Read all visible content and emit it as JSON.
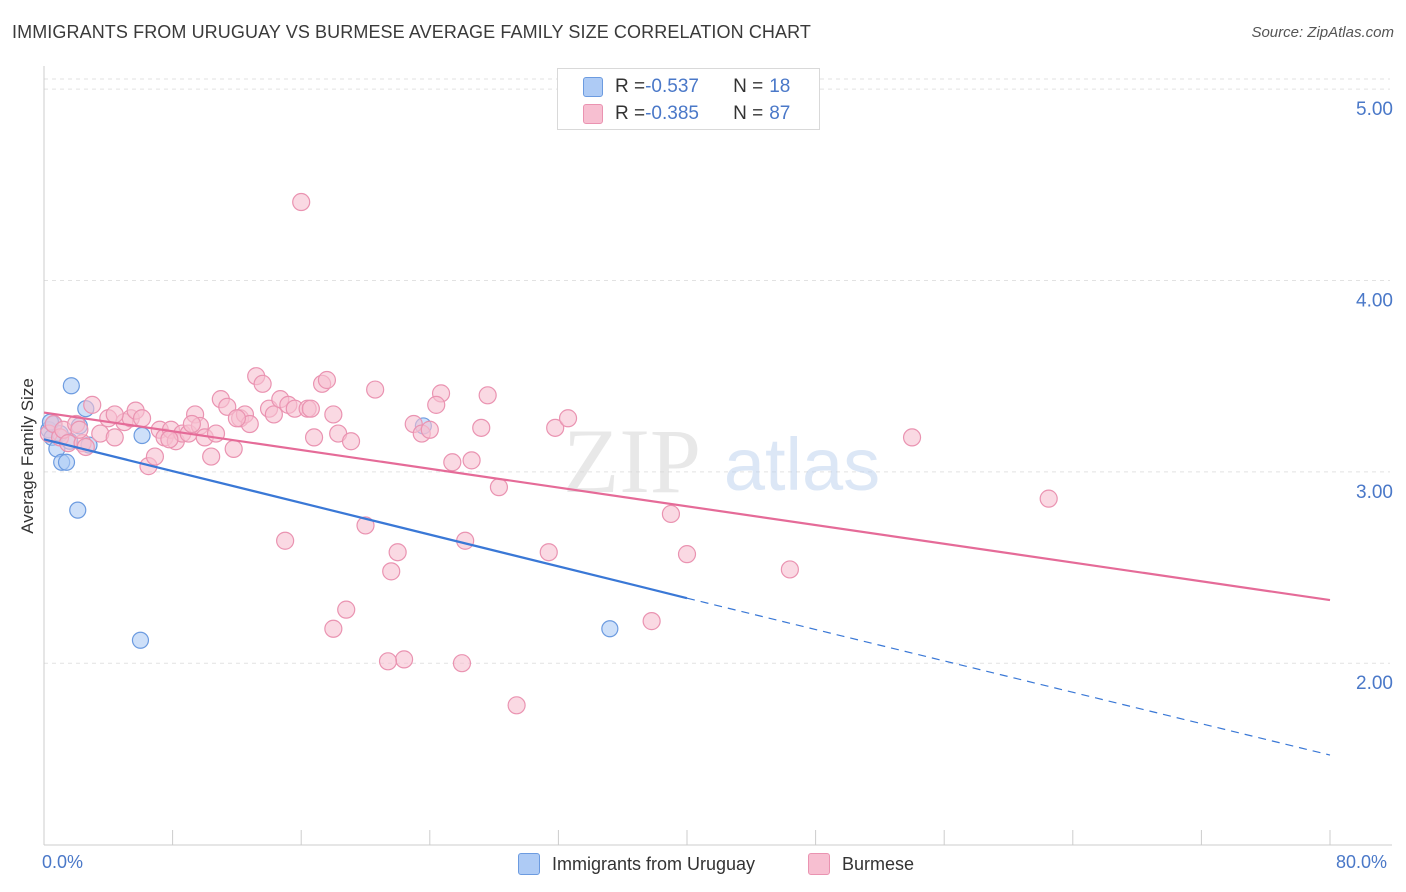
{
  "title": "IMMIGRANTS FROM URUGUAY VS BURMESE AVERAGE FAMILY SIZE CORRELATION CHART",
  "source": "Source: ZipAtlas.com",
  "watermark": {
    "zip": "ZIP",
    "atlas": "atlas"
  },
  "colors": {
    "blue_fill": "#aecbf5",
    "blue_stroke": "#6c9be0",
    "blue_line": "#3a78d6",
    "pink_fill": "#f7bfd1",
    "pink_stroke": "#ea93b1",
    "pink_line": "#e56b98",
    "axis_text": "#4a78c8",
    "grid": "#e2e2e2"
  },
  "legend": {
    "blue": {
      "r_label": "R = ",
      "r_value": "-0.537",
      "n_label": "N = ",
      "n_value": "18"
    },
    "pink": {
      "r_label": "R = ",
      "r_value": "-0.385",
      "n_label": "N = ",
      "n_value": "87"
    }
  },
  "chart_data": {
    "type": "scatter",
    "ylabel": "Average Family Size",
    "xlim": [
      0,
      80
    ],
    "ylim": [
      1.05,
      5.1
    ],
    "x_tick_labels": {
      "left": "0.0%",
      "right": "80.0%"
    },
    "y_ticks": [
      {
        "value": 2.0,
        "label": "2.00"
      },
      {
        "value": 3.0,
        "label": "3.00"
      },
      {
        "value": 4.0,
        "label": "4.00"
      },
      {
        "value": 5.0,
        "label": "5.00"
      }
    ],
    "grid": true,
    "series": [
      {
        "name": "Immigrants from Uruguay",
        "color_key": "blue",
        "trend": {
          "x0": 0,
          "y0": 3.17,
          "x1": 40,
          "y1": 2.34,
          "dash_to_x": 80,
          "dash_to_y": 1.52
        },
        "points": [
          [
            0.3,
            3.22
          ],
          [
            0.5,
            3.18
          ],
          [
            0.6,
            3.25
          ],
          [
            0.8,
            3.12
          ],
          [
            1.0,
            3.2
          ],
          [
            1.1,
            3.05
          ],
          [
            1.4,
            3.05
          ],
          [
            1.6,
            3.16
          ],
          [
            1.7,
            3.45
          ],
          [
            2.2,
            3.24
          ],
          [
            2.1,
            2.8
          ],
          [
            2.6,
            3.33
          ],
          [
            2.8,
            3.14
          ],
          [
            6.1,
            3.19
          ],
          [
            6.0,
            2.12
          ],
          [
            23.6,
            3.24
          ],
          [
            35.2,
            2.18
          ],
          [
            0.4,
            3.26
          ]
        ]
      },
      {
        "name": "Burmese",
        "color_key": "pink",
        "trend": {
          "x0": 0,
          "y0": 3.31,
          "x1": 80,
          "y1": 2.33
        },
        "points": [
          [
            0.3,
            3.2
          ],
          [
            0.6,
            3.25
          ],
          [
            1.0,
            3.18
          ],
          [
            1.2,
            3.22
          ],
          [
            1.5,
            3.15
          ],
          [
            2.0,
            3.25
          ],
          [
            2.4,
            3.15
          ],
          [
            2.6,
            3.13
          ],
          [
            3.0,
            3.35
          ],
          [
            3.5,
            3.2
          ],
          [
            4.0,
            3.28
          ],
          [
            4.4,
            3.18
          ],
          [
            5.0,
            3.26
          ],
          [
            5.4,
            3.28
          ],
          [
            5.7,
            3.32
          ],
          [
            6.1,
            3.28
          ],
          [
            6.5,
            3.03
          ],
          [
            6.9,
            3.08
          ],
          [
            7.2,
            3.22
          ],
          [
            7.5,
            3.18
          ],
          [
            7.9,
            3.22
          ],
          [
            8.2,
            3.16
          ],
          [
            8.6,
            3.2
          ],
          [
            9.0,
            3.2
          ],
          [
            9.4,
            3.3
          ],
          [
            9.7,
            3.24
          ],
          [
            10.0,
            3.18
          ],
          [
            10.4,
            3.08
          ],
          [
            10.7,
            3.2
          ],
          [
            11.0,
            3.38
          ],
          [
            11.4,
            3.34
          ],
          [
            11.8,
            3.12
          ],
          [
            12.2,
            3.28
          ],
          [
            12.5,
            3.3
          ],
          [
            12.8,
            3.25
          ],
          [
            13.2,
            3.5
          ],
          [
            13.6,
            3.46
          ],
          [
            14.0,
            3.33
          ],
          [
            14.3,
            3.3
          ],
          [
            14.7,
            3.38
          ],
          [
            15.2,
            3.35
          ],
          [
            15.6,
            3.33
          ],
          [
            16.0,
            4.41
          ],
          [
            16.4,
            3.33
          ],
          [
            16.8,
            3.18
          ],
          [
            17.3,
            3.46
          ],
          [
            17.6,
            3.48
          ],
          [
            18.0,
            3.3
          ],
          [
            18.3,
            3.2
          ],
          [
            19.1,
            3.16
          ],
          [
            20.0,
            2.72
          ],
          [
            20.6,
            3.43
          ],
          [
            21.6,
            2.48
          ],
          [
            22.0,
            2.58
          ],
          [
            22.4,
            2.02
          ],
          [
            23.0,
            3.25
          ],
          [
            23.5,
            3.2
          ],
          [
            24.0,
            3.22
          ],
          [
            24.7,
            3.41
          ],
          [
            24.4,
            3.35
          ],
          [
            25.4,
            3.05
          ],
          [
            26.2,
            2.64
          ],
          [
            26.6,
            3.06
          ],
          [
            27.2,
            3.23
          ],
          [
            27.6,
            3.4
          ],
          [
            28.3,
            2.92
          ],
          [
            29.4,
            1.78
          ],
          [
            31.4,
            2.58
          ],
          [
            31.8,
            3.23
          ],
          [
            32.6,
            3.28
          ],
          [
            15.0,
            2.64
          ],
          [
            18.8,
            2.28
          ],
          [
            18.0,
            2.18
          ],
          [
            21.4,
            2.01
          ],
          [
            26.0,
            2.0
          ],
          [
            37.8,
            2.22
          ],
          [
            39.0,
            2.78
          ],
          [
            40.0,
            2.57
          ],
          [
            46.4,
            2.49
          ],
          [
            54.0,
            3.18
          ],
          [
            62.5,
            2.86
          ],
          [
            4.4,
            3.3
          ],
          [
            2.2,
            3.22
          ],
          [
            9.2,
            3.25
          ],
          [
            16.6,
            3.33
          ],
          [
            12.0,
            3.28
          ],
          [
            7.8,
            3.17
          ]
        ]
      }
    ]
  },
  "bottom_legend": [
    {
      "name": "Immigrants from Uruguay",
      "color_key": "blue"
    },
    {
      "name": "Burmese",
      "color_key": "pink"
    }
  ]
}
